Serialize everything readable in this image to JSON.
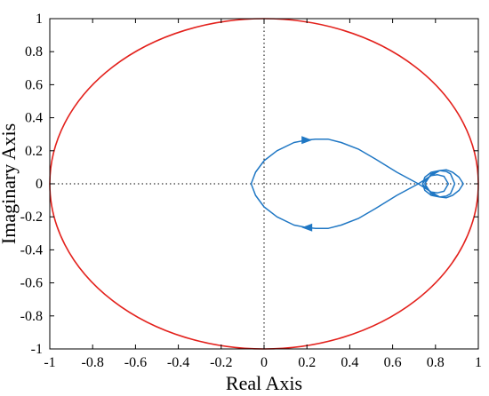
{
  "chart_data": {
    "type": "line",
    "xlabel": "Real Axis",
    "ylabel": "Imaginary Axis",
    "xlim": [
      -1,
      1
    ],
    "ylim": [
      -1,
      1
    ],
    "xticks": [
      -1,
      -0.8,
      -0.6,
      -0.4,
      -0.2,
      0,
      0.2,
      0.4,
      0.6,
      0.8,
      1
    ],
    "yticks": [
      -1,
      -0.8,
      -0.6,
      -0.4,
      -0.2,
      0,
      0.2,
      0.4,
      0.6,
      0.8,
      1
    ],
    "xtick_labels": [
      "-1",
      "-0.8",
      "-0.6",
      "-0.4",
      "-0.2",
      "0",
      "0.2",
      "0.4",
      "0.6",
      "0.8",
      "1"
    ],
    "ytick_labels": [
      "-1",
      "-0.8",
      "-0.6",
      "-0.4",
      "-0.2",
      "0",
      "0.2",
      "0.4",
      "0.6",
      "0.8",
      "1"
    ],
    "grid": false,
    "zero_lines": {
      "style": "dotted",
      "color": "#000000"
    },
    "series": [
      {
        "kind": "unit-circle",
        "color": "#e3211c",
        "center": [
          0,
          0
        ],
        "radius": 1
      },
      {
        "kind": "nyquist-curve",
        "color": "#1f77c4",
        "x": [
          0.72,
          0.62,
          0.52,
          0.44,
          0.36,
          0.3,
          0.24,
          0.2,
          0.14,
          0.06,
          0.0,
          -0.04,
          -0.06,
          -0.04,
          0.0,
          0.06,
          0.14,
          0.2,
          0.24,
          0.3,
          0.36,
          0.44,
          0.52,
          0.62,
          0.72,
          0.78,
          0.82,
          0.85,
          0.88,
          0.91,
          0.93,
          0.91,
          0.88,
          0.85,
          0.82,
          0.78,
          0.75,
          0.74,
          0.75,
          0.78,
          0.82,
          0.85,
          0.87,
          0.89,
          0.87,
          0.85,
          0.82,
          0.78,
          0.76,
          0.75,
          0.76,
          0.78,
          0.81,
          0.84,
          0.86,
          0.84,
          0.81,
          0.78,
          0.76,
          0.75,
          0.76,
          0.78,
          0.82,
          0.85,
          0.87,
          0.89,
          0.87,
          0.85,
          0.82,
          0.78,
          0.75,
          0.74,
          0.75,
          0.78,
          0.82,
          0.85,
          0.88,
          0.91,
          0.93,
          0.91,
          0.88,
          0.85,
          0.82,
          0.78,
          0.72
        ],
        "y": [
          0.0,
          0.07,
          0.15,
          0.21,
          0.25,
          0.27,
          0.27,
          0.265,
          0.25,
          0.2,
          0.14,
          0.07,
          0.0,
          -0.07,
          -0.14,
          -0.2,
          -0.25,
          -0.265,
          -0.27,
          -0.27,
          -0.25,
          -0.21,
          -0.15,
          -0.07,
          0.0,
          0.05,
          0.08,
          0.085,
          0.07,
          0.04,
          0.0,
          -0.04,
          -0.07,
          -0.085,
          -0.08,
          -0.05,
          -0.02,
          0.0,
          0.04,
          0.07,
          0.08,
          0.075,
          0.06,
          0.0,
          -0.06,
          -0.075,
          -0.08,
          -0.06,
          -0.02,
          0.0,
          0.03,
          0.05,
          0.055,
          0.045,
          0.0,
          -0.045,
          -0.055,
          -0.05,
          -0.03,
          0.0,
          0.02,
          0.06,
          0.08,
          0.075,
          0.06,
          0.0,
          -0.06,
          -0.075,
          -0.08,
          -0.07,
          -0.04,
          0.0,
          0.02,
          0.05,
          0.08,
          0.085,
          0.07,
          0.04,
          0.0,
          -0.04,
          -0.07,
          -0.085,
          -0.08,
          -0.05,
          0.0
        ],
        "arrows": [
          {
            "x": 0.2,
            "y": 0.265,
            "direction": "right"
          },
          {
            "x": 0.2,
            "y": -0.265,
            "direction": "left"
          }
        ]
      }
    ]
  }
}
